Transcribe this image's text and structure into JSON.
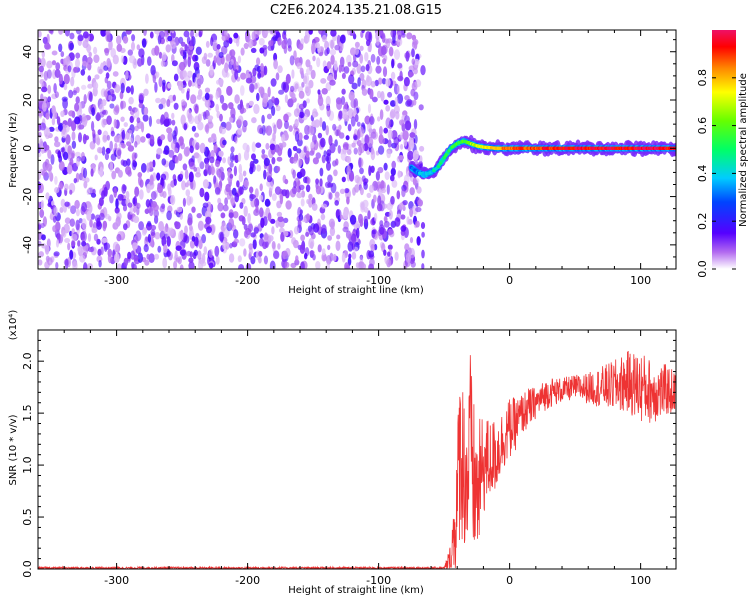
{
  "title": "C2E6.2024.135.21.08.G15",
  "colors": {
    "snr_line": "#ee3333",
    "spectrogram_noise": "#8a2be2",
    "axis": "#000000"
  },
  "chart_data": [
    {
      "type": "heatmap",
      "name": "spectrogram",
      "xlabel": "Height of straight line (km)",
      "ylabel": "Frequency (Hz)",
      "xlim": [
        -360,
        127
      ],
      "ylim": [
        -50,
        49
      ],
      "xticks": [
        -300,
        -200,
        -100,
        0,
        100
      ],
      "xtick_labels": [
        "-300",
        "-200",
        "-100",
        "0",
        "100"
      ],
      "yticks": [
        -40,
        -20,
        0,
        20,
        40
      ],
      "ytick_labels": [
        "-40",
        "-20",
        "0",
        "20",
        "40"
      ],
      "noise_region_x": [
        -360,
        -72
      ],
      "signal_track": {
        "x": [
          -75,
          -70,
          -65,
          -60,
          -55,
          -50,
          -45,
          -40,
          -35,
          -30,
          -25,
          -20,
          -10,
          0,
          20,
          50,
          80,
          100,
          127
        ],
        "freq": [
          -8,
          -10,
          -11,
          -10,
          -8,
          -4,
          0,
          2,
          3,
          2,
          1,
          0.5,
          0,
          0,
          0,
          0,
          0,
          0,
          0
        ],
        "amplitude": [
          0.3,
          0.35,
          0.4,
          0.4,
          0.45,
          0.5,
          0.5,
          0.55,
          0.6,
          0.65,
          0.7,
          0.75,
          0.8,
          0.85,
          0.9,
          0.95,
          0.95,
          0.95,
          0.95
        ]
      },
      "colorbar": {
        "label": "Normalized spectral amplitude",
        "range": [
          0.0,
          1.0
        ],
        "ticks": [
          0.0,
          0.2,
          0.4,
          0.6,
          0.8
        ],
        "tick_labels": [
          "0.0",
          "0.2",
          "0.4",
          "0.6",
          "0.8"
        ]
      }
    },
    {
      "type": "line",
      "name": "snr",
      "xlabel": "Height of straight line (km)",
      "ylabel": "SNR (10 * v/v)",
      "scale_label": "(x10⁴)",
      "xlim": [
        -360,
        127
      ],
      "ylim": [
        0,
        2.3
      ],
      "xticks": [
        -300,
        -200,
        -100,
        0,
        100
      ],
      "xtick_labels": [
        "-300",
        "-200",
        "-100",
        "0",
        "100"
      ],
      "yticks": [
        0.0,
        0.5,
        1.0,
        1.5,
        2.0
      ],
      "ytick_labels": [
        "0.0",
        "0.5",
        "1.0",
        "1.5",
        "2.0"
      ],
      "x": [
        -360,
        -100,
        -50,
        -45,
        -40,
        -38,
        -35,
        -32,
        -30,
        -28,
        -25,
        -20,
        -15,
        -10,
        -5,
        0,
        5,
        10,
        15,
        20,
        25,
        30,
        40,
        50,
        60,
        70,
        80,
        90,
        100,
        110,
        120,
        127
      ],
      "values": [
        0.01,
        0.01,
        0.01,
        0.1,
        0.6,
        1.2,
        1.0,
        0.8,
        1.4,
        0.9,
        0.7,
        1.0,
        1.05,
        1.1,
        1.25,
        1.35,
        1.4,
        1.5,
        1.55,
        1.6,
        1.65,
        1.7,
        1.72,
        1.75,
        1.74,
        1.75,
        1.76,
        1.8,
        1.75,
        1.7,
        1.72,
        1.7
      ],
      "spread": [
        0.01,
        0.01,
        0.01,
        0.15,
        0.7,
        0.9,
        0.8,
        0.8,
        0.7,
        0.8,
        0.7,
        0.5,
        0.4,
        0.35,
        0.3,
        0.3,
        0.25,
        0.2,
        0.2,
        0.15,
        0.15,
        0.15,
        0.12,
        0.12,
        0.15,
        0.2,
        0.25,
        0.3,
        0.35,
        0.3,
        0.25,
        0.2
      ]
    }
  ]
}
